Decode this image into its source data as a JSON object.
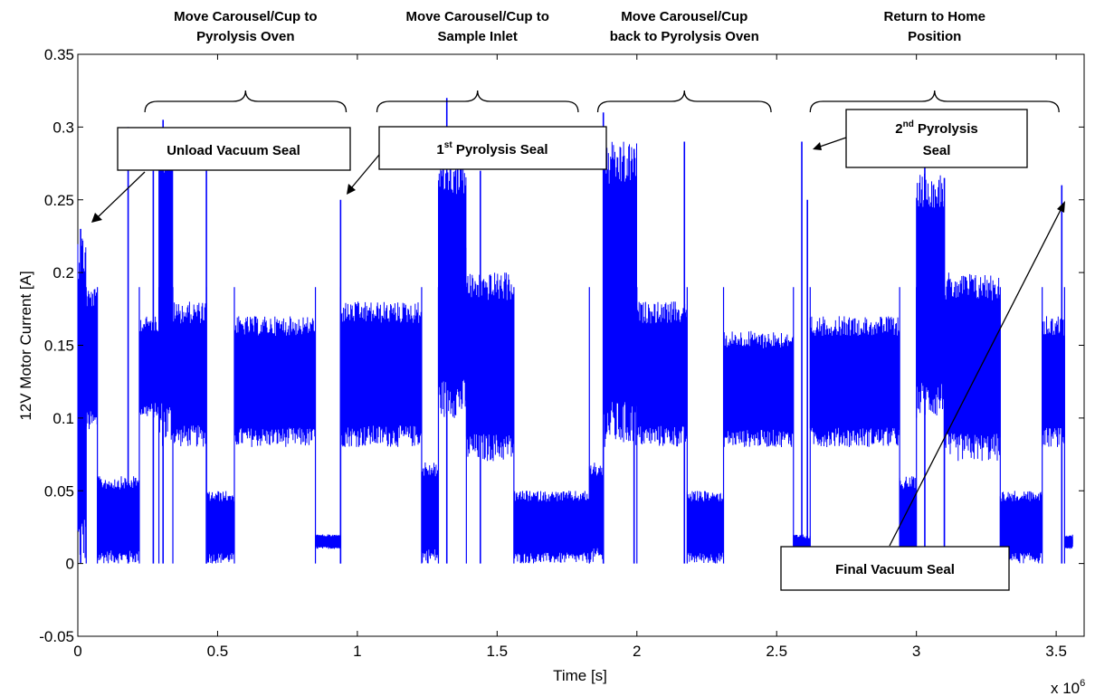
{
  "chart_data": {
    "type": "line",
    "xlabel": "Time [s]",
    "ylabel": "12V Motor Current [A]",
    "x_multiplier_label": "x 10",
    "x_multiplier_exp": "6",
    "xlim": [
      0,
      3600000
    ],
    "ylim": [
      -0.05,
      0.35
    ],
    "xticks": [
      0,
      500000,
      1000000,
      1500000,
      2000000,
      2500000,
      3000000,
      3500000
    ],
    "xtick_labels": [
      "0",
      "0.5",
      "1",
      "1.5",
      "2",
      "2.5",
      "3",
      "3.5"
    ],
    "yticks": [
      -0.05,
      0,
      0.05,
      0.1,
      0.15,
      0.2,
      0.25,
      0.3,
      0.35
    ],
    "ytick_labels": [
      "-0.05",
      "0",
      "0.05",
      "0.1",
      "0.15",
      "0.2",
      "0.25",
      "0.3",
      "0.35"
    ],
    "grid": false,
    "series_color": "#0000ff",
    "segments": [
      {
        "x0": 0,
        "x1": 30000,
        "low": 0.0,
        "high": 0.23
      },
      {
        "x0": 30000,
        "x1": 70000,
        "low": 0.09,
        "high": 0.19
      },
      {
        "x0": 70000,
        "x1": 220000,
        "low": 0.0,
        "high": 0.06
      },
      {
        "x0": 220000,
        "x1": 290000,
        "low": 0.1,
        "high": 0.17
      },
      {
        "x0": 290000,
        "x1": 340000,
        "low": 0.08,
        "high": 0.3
      },
      {
        "x0": 340000,
        "x1": 460000,
        "low": 0.08,
        "high": 0.18
      },
      {
        "x0": 460000,
        "x1": 560000,
        "low": 0.0,
        "high": 0.05
      },
      {
        "x0": 560000,
        "x1": 850000,
        "low": 0.08,
        "high": 0.17
      },
      {
        "x0": 850000,
        "x1": 940000,
        "low": 0.01,
        "high": 0.02
      },
      {
        "x0": 940000,
        "x1": 1230000,
        "low": 0.08,
        "high": 0.18
      },
      {
        "x0": 1230000,
        "x1": 1290000,
        "low": 0.0,
        "high": 0.07
      },
      {
        "x0": 1290000,
        "x1": 1390000,
        "low": 0.1,
        "high": 0.28
      },
      {
        "x0": 1390000,
        "x1": 1560000,
        "low": 0.07,
        "high": 0.2
      },
      {
        "x0": 1560000,
        "x1": 1830000,
        "low": 0.0,
        "high": 0.05
      },
      {
        "x0": 1830000,
        "x1": 1880000,
        "low": 0.0,
        "high": 0.07
      },
      {
        "x0": 1880000,
        "x1": 2000000,
        "low": 0.08,
        "high": 0.29
      },
      {
        "x0": 2000000,
        "x1": 2180000,
        "low": 0.08,
        "high": 0.18
      },
      {
        "x0": 2180000,
        "x1": 2310000,
        "low": 0.0,
        "high": 0.05
      },
      {
        "x0": 2310000,
        "x1": 2560000,
        "low": 0.08,
        "high": 0.16
      },
      {
        "x0": 2560000,
        "x1": 2620000,
        "low": 0.0,
        "high": 0.02
      },
      {
        "x0": 2620000,
        "x1": 2940000,
        "low": 0.08,
        "high": 0.17
      },
      {
        "x0": 2940000,
        "x1": 3000000,
        "low": 0.0,
        "high": 0.06
      },
      {
        "x0": 3000000,
        "x1": 3100000,
        "low": 0.1,
        "high": 0.27
      },
      {
        "x0": 3100000,
        "x1": 3300000,
        "low": 0.07,
        "high": 0.2
      },
      {
        "x0": 3300000,
        "x1": 3450000,
        "low": 0.0,
        "high": 0.05
      },
      {
        "x0": 3450000,
        "x1": 3530000,
        "low": 0.08,
        "high": 0.17
      },
      {
        "x0": 3530000,
        "x1": 3560000,
        "low": 0.01,
        "high": 0.02
      }
    ],
    "spikes": [
      {
        "x": 10000,
        "y": 0.23
      },
      {
        "x": 180000,
        "y": 0.3
      },
      {
        "x": 270000,
        "y": 0.27
      },
      {
        "x": 305000,
        "y": 0.305
      },
      {
        "x": 460000,
        "y": 0.27
      },
      {
        "x": 940000,
        "y": 0.25
      },
      {
        "x": 1320000,
        "y": 0.32
      },
      {
        "x": 1440000,
        "y": 0.27
      },
      {
        "x": 1880000,
        "y": 0.31
      },
      {
        "x": 1990000,
        "y": 0.285
      },
      {
        "x": 2170000,
        "y": 0.29
      },
      {
        "x": 2590000,
        "y": 0.29
      },
      {
        "x": 2610000,
        "y": 0.25
      },
      {
        "x": 3030000,
        "y": 0.3
      },
      {
        "x": 3100000,
        "y": 0.265
      },
      {
        "x": 3520000,
        "y": 0.26
      }
    ],
    "phases": [
      {
        "label_lines": [
          "Move Carousel/Cup to",
          "Pyrolysis Oven"
        ],
        "x_start": 240000,
        "x_end": 960000
      },
      {
        "label_lines": [
          "Move Carousel/Cup to",
          "Sample Inlet"
        ],
        "x_start": 1070000,
        "x_end": 1790000
      },
      {
        "label_lines": [
          "Move Carousel/Cup",
          "back to Pyrolysis Oven"
        ],
        "x_start": 1860000,
        "x_end": 2480000
      },
      {
        "label_lines": [
          "Return to Home",
          "Position"
        ],
        "x_start": 2620000,
        "x_end": 3510000
      }
    ],
    "annotations": [
      {
        "text_lines": [
          "Unload Vacuum Seal"
        ],
        "sup": "",
        "target": [
          20000,
          0.23
        ]
      },
      {
        "text_lines": [
          "1",
          " Pyrolysis Seal"
        ],
        "sup": "st",
        "target": [
          940000,
          0.25
        ]
      },
      {
        "text_lines": [
          "2",
          " Pyrolysis",
          "Seal"
        ],
        "sup": "nd",
        "target": [
          2600000,
          0.29
        ]
      },
      {
        "text_lines": [
          "Final Vacuum Seal"
        ],
        "sup": "",
        "target": [
          3520000,
          0.26
        ]
      }
    ]
  }
}
